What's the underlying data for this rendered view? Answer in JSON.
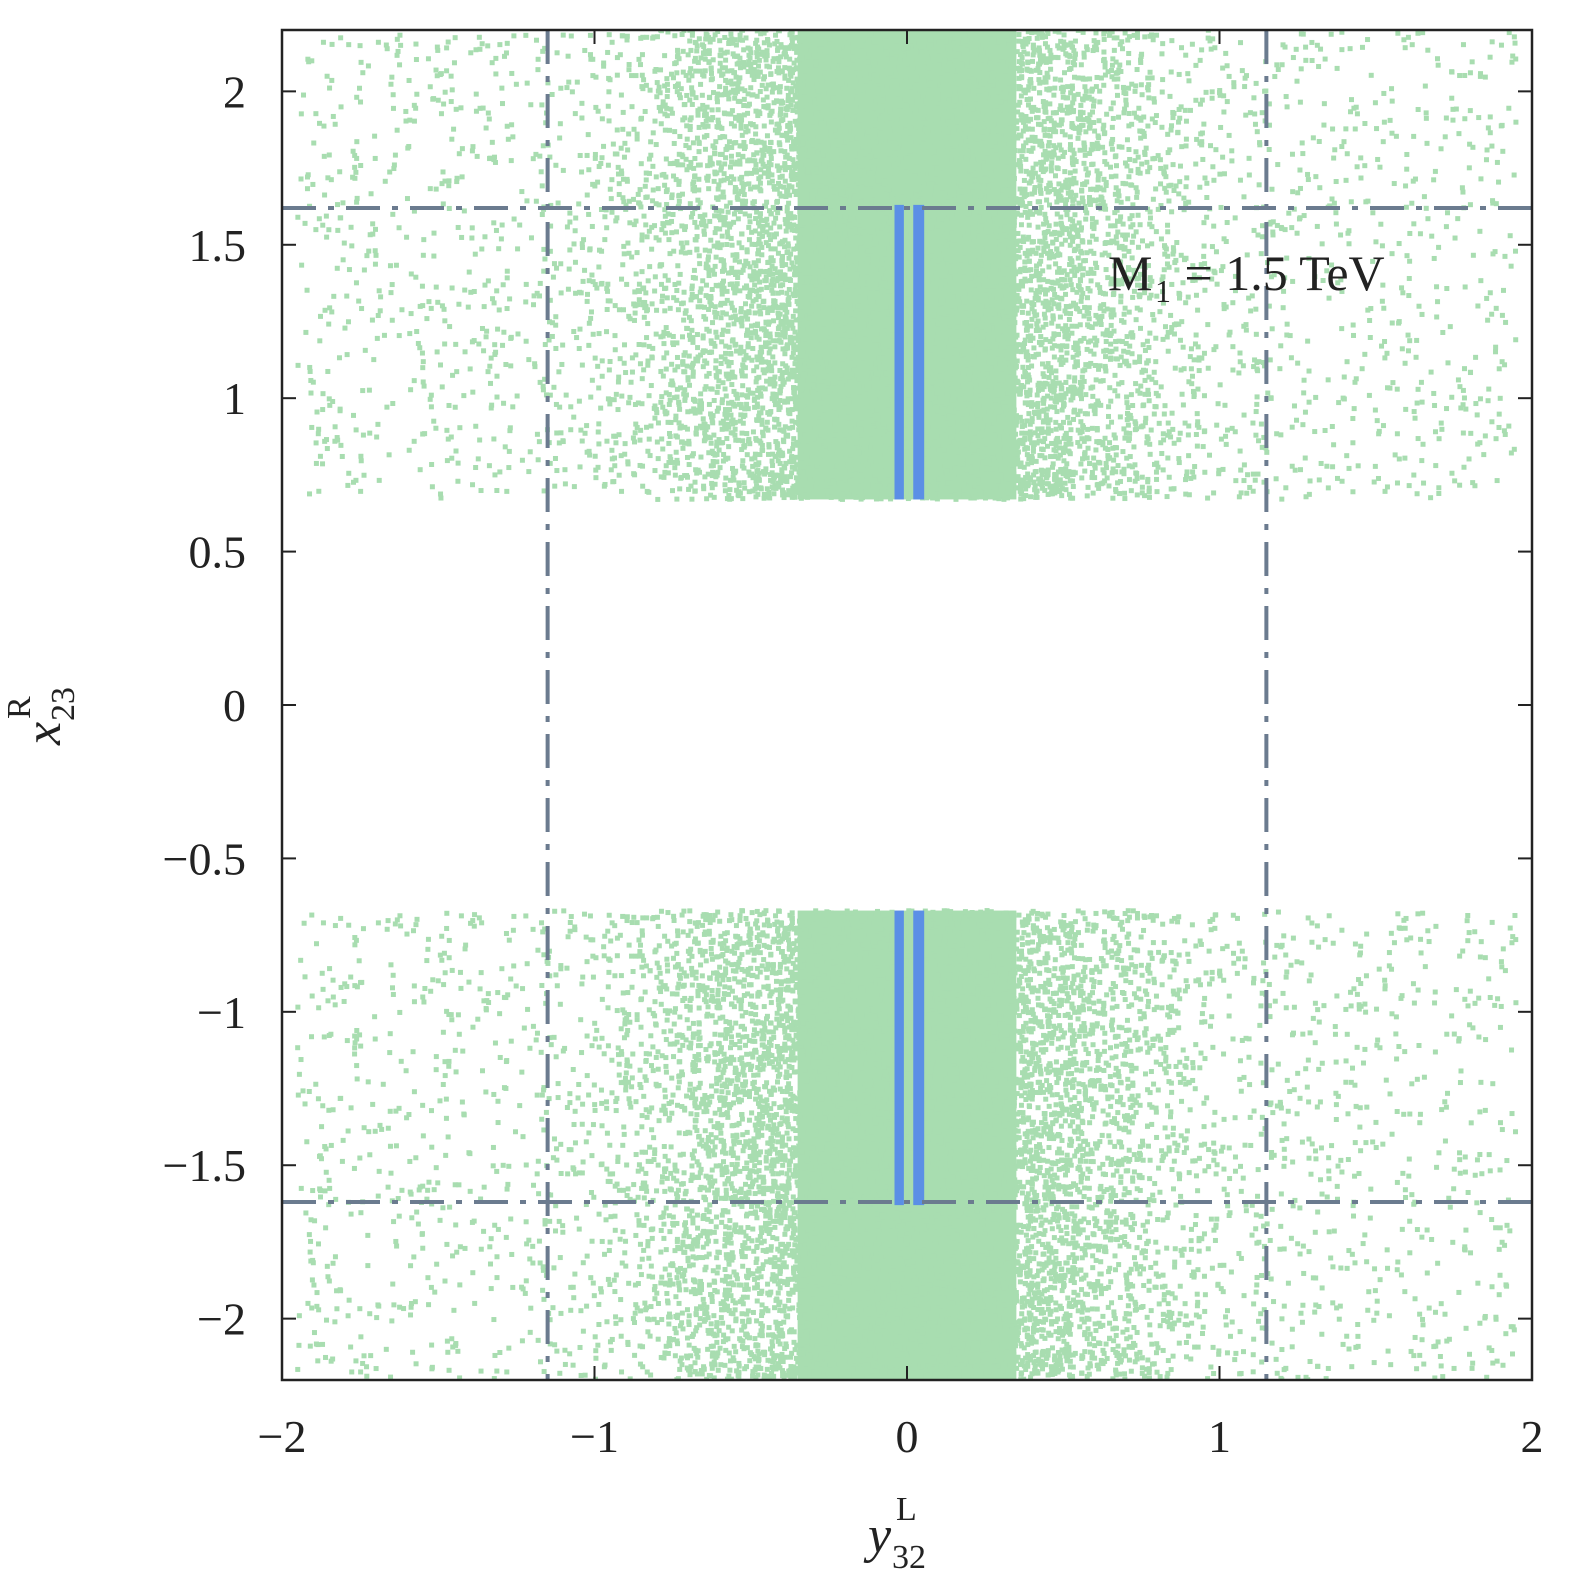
{
  "chart_data": {
    "type": "scatter",
    "xlabel": {
      "base": "y",
      "sup": "L",
      "sub": "32"
    },
    "ylabel": {
      "base": "x",
      "sup": "R",
      "sub": "23"
    },
    "xlim": [
      -2,
      2.0
    ],
    "ylim": [
      -2.2,
      2.2
    ],
    "xticks": [
      -2,
      -1,
      0,
      1,
      2
    ],
    "yticks": [
      -2,
      -1.5,
      -1,
      -0.5,
      0,
      0.5,
      1,
      1.5,
      2
    ],
    "xtick_labels": [
      "−2",
      "−1",
      "0",
      "1",
      "2"
    ],
    "ytick_labels": [
      "−2",
      "−1.5",
      "−1",
      "−0.5",
      "0",
      "0.5",
      "1",
      "1.5",
      "2"
    ],
    "grid": false,
    "annotation": {
      "base": "M",
      "sub": "1",
      "rest": " = 1.5 TeV"
    },
    "colors": {
      "scatter": "#a8ddb0",
      "band": "#5b8fe6",
      "limits": "#6b7b8f",
      "axes": "#222222"
    },
    "series": [
      {
        "kind": "scatter-region",
        "description_points": "green points; dense core |y| < 0.35, sparse up to |y| ~ 1.9",
        "x_range": [
          -1.95,
          1.95
        ],
        "y_ranges": [
          [
            0.67,
            2.2
          ],
          [
            -2.2,
            -0.67
          ]
        ],
        "dense_core_x": [
          -0.35,
          0.35
        ]
      },
      {
        "kind": "band",
        "x_segments": [
          [
            -0.04,
            -0.01
          ],
          [
            0.02,
            0.055
          ]
        ],
        "y_ranges": [
          [
            0.67,
            1.63
          ],
          [
            -1.63,
            -0.67
          ]
        ]
      }
    ],
    "limit_lines": {
      "vertical_x": [
        -1.15,
        1.15
      ],
      "horizontal_y": [
        1.62,
        -1.62
      ]
    }
  }
}
